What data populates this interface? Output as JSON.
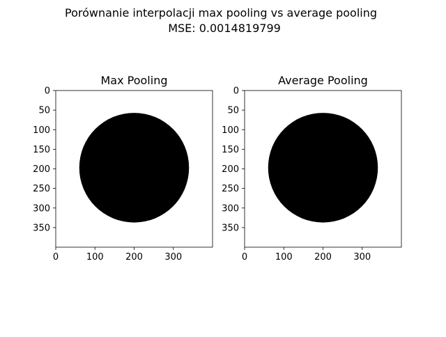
{
  "figure": {
    "title_line1": "Porównanie interpolacji max pooling vs average pooling",
    "title_line2": "MSE: 0.0014819799"
  },
  "chart_data": [
    {
      "type": "heatmap",
      "title": "Max Pooling",
      "xlabel": "",
      "ylabel": "",
      "image_size": [
        400,
        400
      ],
      "xlim": [
        0,
        400
      ],
      "ylim": [
        400,
        0
      ],
      "x_ticks": [
        0,
        100,
        200,
        300
      ],
      "y_ticks": [
        0,
        50,
        100,
        150,
        200,
        250,
        300,
        350
      ],
      "grid": false,
      "background_color": "#ffffff",
      "shape": {
        "kind": "filled-circle",
        "center": [
          200,
          197
        ],
        "radius": 140,
        "color": "#000000"
      }
    },
    {
      "type": "heatmap",
      "title": "Average Pooling",
      "xlabel": "",
      "ylabel": "",
      "image_size": [
        400,
        400
      ],
      "xlim": [
        0,
        400
      ],
      "ylim": [
        400,
        0
      ],
      "x_ticks": [
        0,
        100,
        200,
        300
      ],
      "y_ticks": [
        0,
        50,
        100,
        150,
        200,
        250,
        300,
        350
      ],
      "grid": false,
      "background_color": "#ffffff",
      "shape": {
        "kind": "filled-circle",
        "center": [
          200,
          197
        ],
        "radius": 140,
        "color": "#000000"
      }
    }
  ]
}
